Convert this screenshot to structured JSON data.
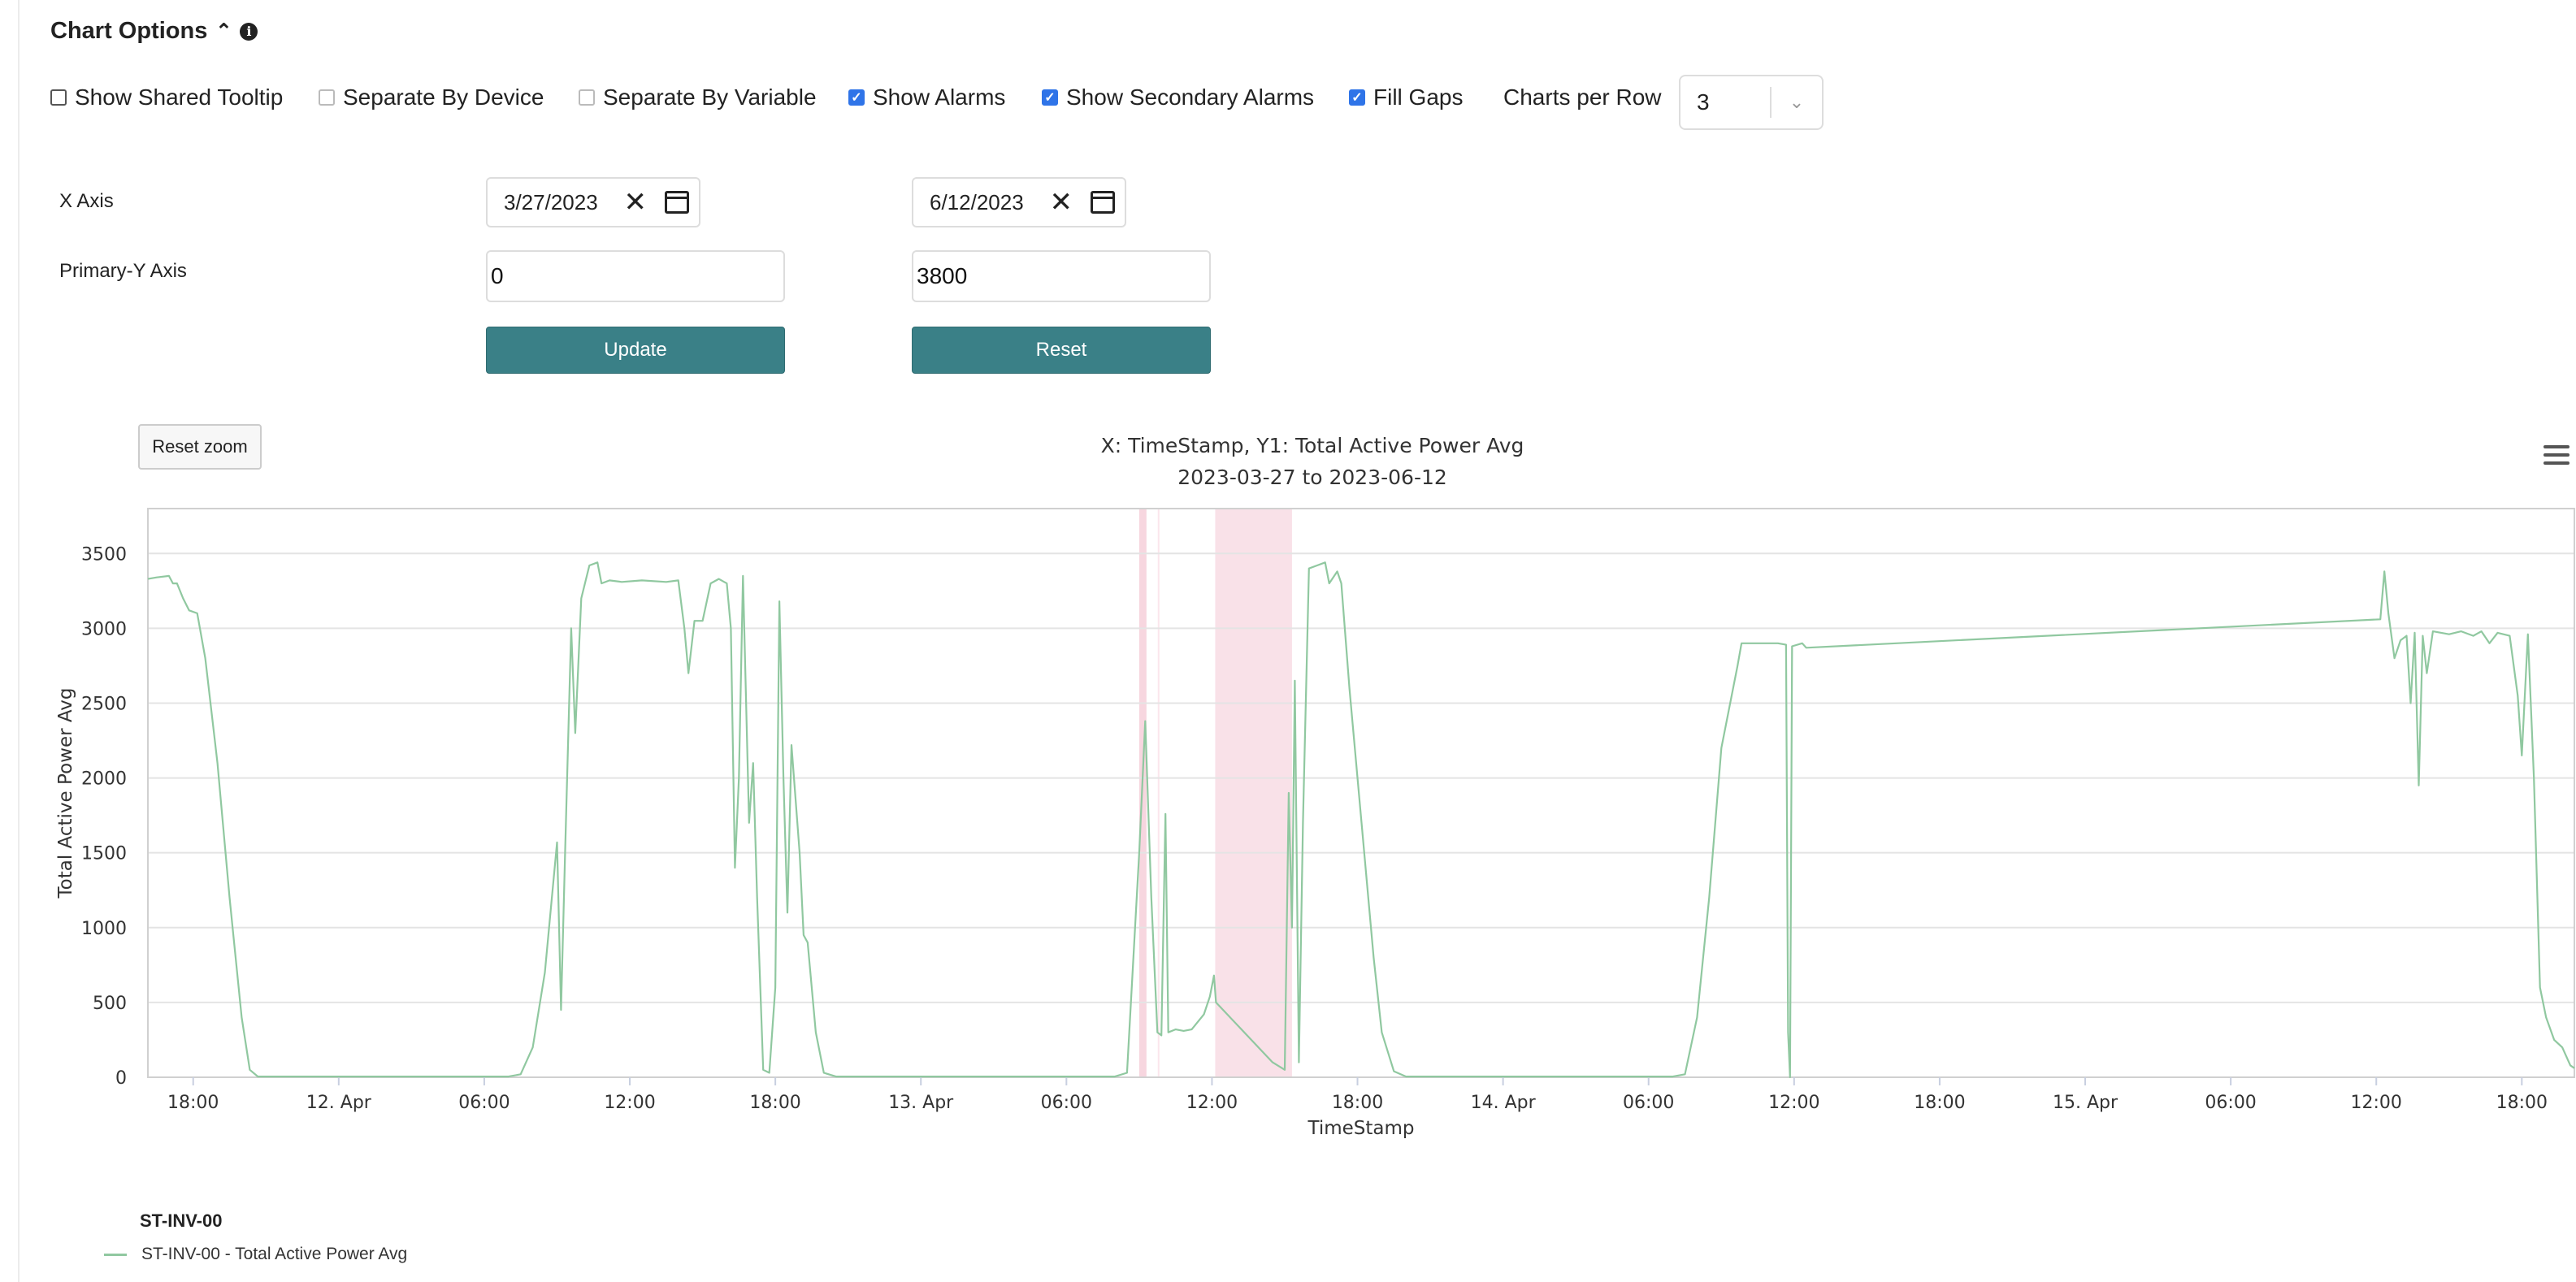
{
  "header": {
    "title": "Chart Options",
    "collapse_icon": "chevrons-collapse-icon",
    "info_icon": "info-icon"
  },
  "options": {
    "show_shared_tooltip": {
      "label": "Show Shared Tooltip",
      "checked": false,
      "disabled": false
    },
    "separate_by_device": {
      "label": "Separate By Device",
      "checked": false,
      "disabled": true
    },
    "separate_by_variable": {
      "label": "Separate By Variable",
      "checked": false,
      "disabled": true
    },
    "show_alarms": {
      "label": "Show Alarms",
      "checked": true,
      "disabled": false
    },
    "show_secondary_alarms": {
      "label": "Show Secondary Alarms",
      "checked": true,
      "disabled": false
    },
    "fill_gaps": {
      "label": "Fill Gaps",
      "checked": true,
      "disabled": false
    },
    "charts_per_row": {
      "label": "Charts per Row",
      "value": "3"
    }
  },
  "axes_form": {
    "x_label": "X Axis",
    "x_start": "3/27/2023",
    "x_end": "6/12/2023",
    "y_label": "Primary-Y Axis",
    "y_min": "0",
    "y_max": "3800",
    "update_label": "Update",
    "reset_label": "Reset"
  },
  "reset_zoom_label": "Reset zoom",
  "accent": "#3a8087",
  "chart_data": {
    "type": "line",
    "title": "X: TimeStamp, Y1: Total Active Power Avg",
    "subtitle": "2023-03-27 to 2023-06-12",
    "xlabel": "TimeStamp",
    "ylabel": "Total Active Power Avg",
    "ylim": [
      0,
      3800
    ],
    "yticks": [
      0,
      500,
      1000,
      1500,
      2000,
      2500,
      3000,
      3500
    ],
    "xlim": [
      "2023-04-11T16:08",
      "2023-04-15T20:10"
    ],
    "xticks": [
      {
        "t": "2023-04-11T18:00",
        "label": "18:00"
      },
      {
        "t": "2023-04-12T00:00",
        "label": "12. Apr"
      },
      {
        "t": "2023-04-12T06:00",
        "label": "06:00"
      },
      {
        "t": "2023-04-12T12:00",
        "label": "12:00"
      },
      {
        "t": "2023-04-12T18:00",
        "label": "18:00"
      },
      {
        "t": "2023-04-13T00:00",
        "label": "13. Apr"
      },
      {
        "t": "2023-04-13T06:00",
        "label": "06:00"
      },
      {
        "t": "2023-04-13T12:00",
        "label": "12:00"
      },
      {
        "t": "2023-04-13T18:00",
        "label": "18:00"
      },
      {
        "t": "2023-04-14T00:00",
        "label": "14. Apr"
      },
      {
        "t": "2023-04-14T06:00",
        "label": "06:00"
      },
      {
        "t": "2023-04-14T12:00",
        "label": "12:00"
      },
      {
        "t": "2023-04-14T18:00",
        "label": "18:00"
      },
      {
        "t": "2023-04-15T00:00",
        "label": "15. Apr"
      },
      {
        "t": "2023-04-15T06:00",
        "label": "06:00"
      },
      {
        "t": "2023-04-15T12:00",
        "label": "12:00"
      },
      {
        "t": "2023-04-15T18:00",
        "label": "18:00"
      }
    ],
    "grid": true,
    "alarm_bands": [
      {
        "from": "2023-04-13T09:00",
        "to": "2023-04-13T09:18",
        "color": "#f7d6df"
      },
      {
        "from": "2023-04-13T09:46",
        "to": "2023-04-13T09:50",
        "color": "#fbe6ec"
      },
      {
        "from": "2023-04-13T12:08",
        "to": "2023-04-13T15:18",
        "color": "#f9e1e8"
      }
    ],
    "legend_title": "ST-INV-00",
    "legend_position": "bottom-left",
    "series": [
      {
        "name": "ST-INV-00 - Total Active Power Avg",
        "color": "#90c8a0",
        "points": [
          [
            "2023-04-11T16:08",
            3330
          ],
          [
            "2023-04-11T16:30",
            3340
          ],
          [
            "2023-04-11T17:00",
            3350
          ],
          [
            "2023-04-11T17:10",
            3300
          ],
          [
            "2023-04-11T17:20",
            3300
          ],
          [
            "2023-04-11T17:35",
            3200
          ],
          [
            "2023-04-11T17:50",
            3120
          ],
          [
            "2023-04-11T18:10",
            3100
          ],
          [
            "2023-04-11T18:30",
            2800
          ],
          [
            "2023-04-11T19:00",
            2100
          ],
          [
            "2023-04-11T19:30",
            1200
          ],
          [
            "2023-04-11T20:00",
            400
          ],
          [
            "2023-04-11T20:20",
            50
          ],
          [
            "2023-04-11T20:40",
            5
          ],
          [
            "2023-04-12T07:00",
            5
          ],
          [
            "2023-04-12T07:30",
            20
          ],
          [
            "2023-04-12T08:00",
            200
          ],
          [
            "2023-04-12T08:30",
            700
          ],
          [
            "2023-04-12T09:00",
            1570
          ],
          [
            "2023-04-12T09:10",
            450
          ],
          [
            "2023-04-12T09:20",
            1500
          ],
          [
            "2023-04-12T09:35",
            3000
          ],
          [
            "2023-04-12T09:45",
            2300
          ],
          [
            "2023-04-12T10:00",
            3200
          ],
          [
            "2023-04-12T10:20",
            3420
          ],
          [
            "2023-04-12T10:40",
            3440
          ],
          [
            "2023-04-12T10:50",
            3300
          ],
          [
            "2023-04-12T11:10",
            3320
          ],
          [
            "2023-04-12T11:40",
            3310
          ],
          [
            "2023-04-12T12:30",
            3320
          ],
          [
            "2023-04-12T13:30",
            3310
          ],
          [
            "2023-04-12T14:00",
            3320
          ],
          [
            "2023-04-12T14:15",
            3000
          ],
          [
            "2023-04-12T14:25",
            2700
          ],
          [
            "2023-04-12T14:40",
            3050
          ],
          [
            "2023-04-12T15:00",
            3050
          ],
          [
            "2023-04-12T15:20",
            3300
          ],
          [
            "2023-04-12T15:40",
            3330
          ],
          [
            "2023-04-12T16:00",
            3300
          ],
          [
            "2023-04-12T16:10",
            3000
          ],
          [
            "2023-04-12T16:20",
            1400
          ],
          [
            "2023-04-12T16:30",
            2000
          ],
          [
            "2023-04-12T16:40",
            3350
          ],
          [
            "2023-04-12T16:55",
            1700
          ],
          [
            "2023-04-12T17:05",
            2100
          ],
          [
            "2023-04-12T17:15",
            1200
          ],
          [
            "2023-04-12T17:30",
            50
          ],
          [
            "2023-04-12T17:45",
            30
          ],
          [
            "2023-04-12T18:00",
            600
          ],
          [
            "2023-04-12T18:10",
            3180
          ],
          [
            "2023-04-12T18:20",
            2000
          ],
          [
            "2023-04-12T18:30",
            1100
          ],
          [
            "2023-04-12T18:40",
            2220
          ],
          [
            "2023-04-12T19:00",
            1500
          ],
          [
            "2023-04-12T19:10",
            950
          ],
          [
            "2023-04-12T19:20",
            900
          ],
          [
            "2023-04-12T19:40",
            300
          ],
          [
            "2023-04-12T20:00",
            30
          ],
          [
            "2023-04-12T20:30",
            5
          ],
          [
            "2023-04-13T08:00",
            5
          ],
          [
            "2023-04-13T08:30",
            30
          ],
          [
            "2023-04-13T09:00",
            1500
          ],
          [
            "2023-04-13T09:15",
            2380
          ],
          [
            "2023-04-13T09:30",
            1200
          ],
          [
            "2023-04-13T09:45",
            300
          ],
          [
            "2023-04-13T09:55",
            280
          ],
          [
            "2023-04-13T10:05",
            1760
          ],
          [
            "2023-04-13T10:12",
            300
          ],
          [
            "2023-04-13T10:30",
            320
          ],
          [
            "2023-04-13T10:50",
            310
          ],
          [
            "2023-04-13T11:10",
            320
          ],
          [
            "2023-04-13T11:40",
            420
          ],
          [
            "2023-04-13T11:55",
            540
          ],
          [
            "2023-04-13T12:05",
            680
          ],
          [
            "2023-04-13T12:10",
            500
          ],
          [
            "2023-04-13T14:30",
            100
          ],
          [
            "2023-04-13T15:00",
            50
          ],
          [
            "2023-04-13T15:10",
            1900
          ],
          [
            "2023-04-13T15:18",
            1000
          ],
          [
            "2023-04-13T15:25",
            2650
          ],
          [
            "2023-04-13T15:35",
            100
          ],
          [
            "2023-04-13T15:45",
            1700
          ],
          [
            "2023-04-13T16:00",
            3400
          ],
          [
            "2023-04-13T16:20",
            3420
          ],
          [
            "2023-04-13T16:40",
            3440
          ],
          [
            "2023-04-13T16:50",
            3300
          ],
          [
            "2023-04-13T17:10",
            3380
          ],
          [
            "2023-04-13T17:20",
            3300
          ],
          [
            "2023-04-13T17:40",
            2600
          ],
          [
            "2023-04-13T18:10",
            1700
          ],
          [
            "2023-04-13T18:40",
            800
          ],
          [
            "2023-04-13T19:00",
            300
          ],
          [
            "2023-04-13T19:30",
            40
          ],
          [
            "2023-04-13T20:00",
            5
          ],
          [
            "2023-04-14T07:00",
            5
          ],
          [
            "2023-04-14T07:30",
            20
          ],
          [
            "2023-04-14T08:00",
            400
          ],
          [
            "2023-04-14T08:30",
            1200
          ],
          [
            "2023-04-14T09:00",
            2200
          ],
          [
            "2023-04-14T09:40",
            2750
          ],
          [
            "2023-04-14T09:50",
            2900
          ],
          [
            "2023-04-14T11:20",
            2900
          ],
          [
            "2023-04-14T11:40",
            2890
          ],
          [
            "2023-04-14T11:45",
            300
          ],
          [
            "2023-04-14T11:50",
            0
          ],
          [
            "2023-04-14T11:55",
            2880
          ],
          [
            "2023-04-14T12:20",
            2900
          ],
          [
            "2023-04-14T12:30",
            2870
          ],
          [
            "2023-04-15T12:10",
            3060
          ],
          [
            "2023-04-15T12:20",
            3380
          ],
          [
            "2023-04-15T12:30",
            3100
          ],
          [
            "2023-04-15T12:45",
            2800
          ],
          [
            "2023-04-15T13:00",
            2920
          ],
          [
            "2023-04-15T13:15",
            2950
          ],
          [
            "2023-04-15T13:25",
            2500
          ],
          [
            "2023-04-15T13:35",
            2970
          ],
          [
            "2023-04-15T13:45",
            1950
          ],
          [
            "2023-04-15T13:55",
            2950
          ],
          [
            "2023-04-15T14:05",
            2700
          ],
          [
            "2023-04-15T14:20",
            2980
          ],
          [
            "2023-04-15T15:00",
            2960
          ],
          [
            "2023-04-15T15:30",
            2980
          ],
          [
            "2023-04-15T16:00",
            2950
          ],
          [
            "2023-04-15T16:20",
            2980
          ],
          [
            "2023-04-15T16:40",
            2900
          ],
          [
            "2023-04-15T17:00",
            2970
          ],
          [
            "2023-04-15T17:30",
            2950
          ],
          [
            "2023-04-15T17:50",
            2550
          ],
          [
            "2023-04-15T18:00",
            2150
          ],
          [
            "2023-04-15T18:15",
            2960
          ],
          [
            "2023-04-15T18:30",
            2000
          ],
          [
            "2023-04-15T18:45",
            600
          ],
          [
            "2023-04-15T19:00",
            400
          ],
          [
            "2023-04-15T19:20",
            250
          ],
          [
            "2023-04-15T19:40",
            200
          ],
          [
            "2023-04-15T20:00",
            80
          ],
          [
            "2023-04-15T20:10",
            60
          ]
        ]
      }
    ]
  }
}
